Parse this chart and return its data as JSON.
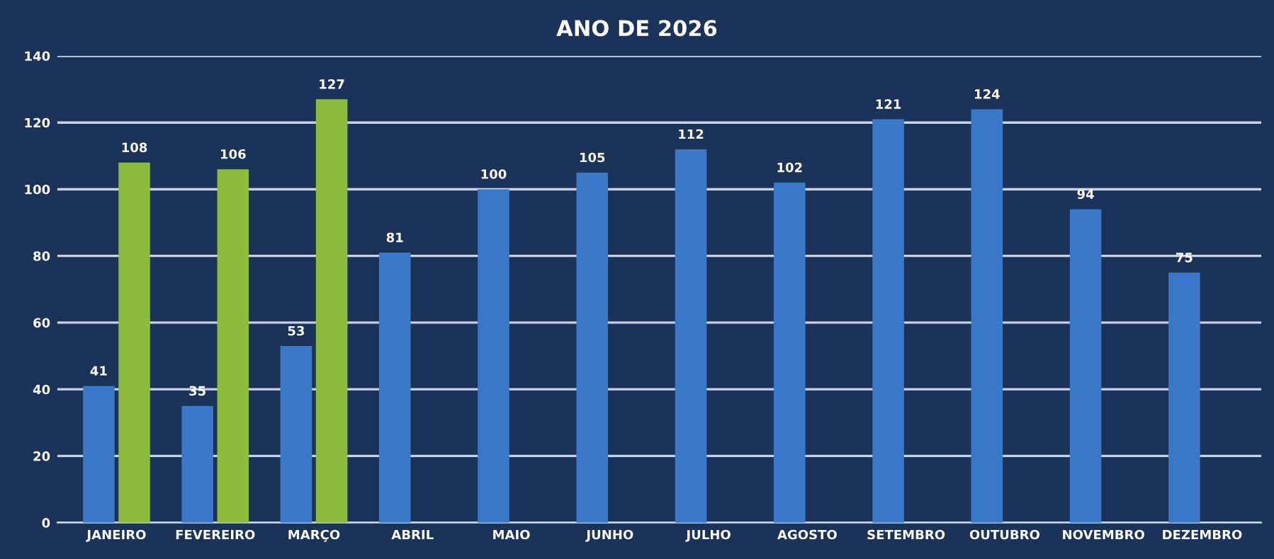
{
  "chart_data": {
    "type": "bar",
    "title": "ANO DE 2026",
    "categories": [
      "JANEIRO",
      "FEVEREIRO",
      "MARÇO",
      "ABRIL",
      "MAIO",
      "JUNHO",
      "JULHO",
      "AGOSTO",
      "SETEMBRO",
      "OUTUBRO",
      "NOVEMBRO",
      "DEZEMBRO"
    ],
    "series": [
      {
        "color": "#3a78c9",
        "values": [
          41,
          35,
          53,
          81,
          100,
          105,
          112,
          102,
          121,
          124,
          94,
          75
        ]
      },
      {
        "color": "#8dbb3c",
        "values": [
          108,
          106,
          127,
          null,
          null,
          null,
          null,
          null,
          null,
          null,
          null,
          null
        ]
      }
    ],
    "ylim": [
      0,
      140
    ],
    "yticks": [
      0,
      20,
      40,
      60,
      80,
      100,
      120,
      140
    ],
    "grid": "y",
    "data_labels": true,
    "legend": false
  }
}
